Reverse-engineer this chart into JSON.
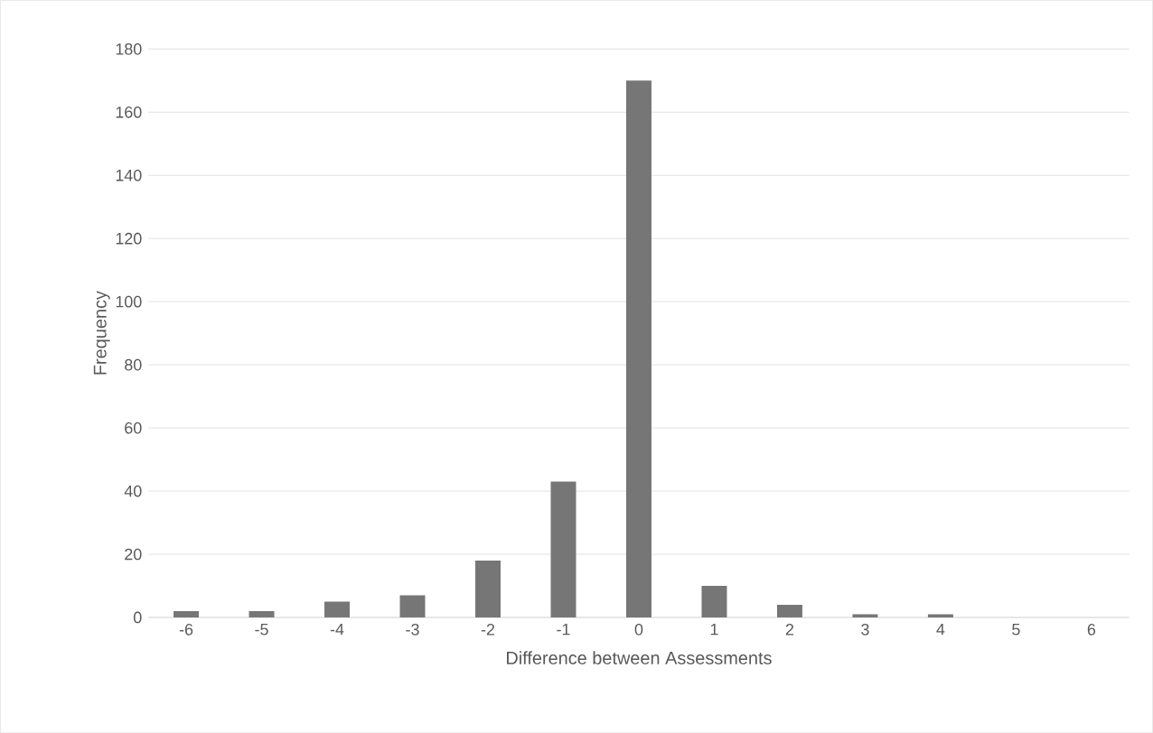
{
  "chart_data": {
    "type": "bar",
    "xlabel": "Difference between Assessments",
    "ylabel": "Frequency",
    "categories": [
      "-6",
      "-5",
      "-4",
      "-3",
      "-2",
      "-1",
      "0",
      "1",
      "2",
      "3",
      "4",
      "5",
      "6"
    ],
    "values": [
      2,
      2,
      5,
      7,
      18,
      43,
      170,
      10,
      4,
      1,
      1,
      0,
      0
    ],
    "color": "#767676",
    "ylim": [
      0,
      180
    ],
    "yticks": [
      0,
      20,
      40,
      60,
      80,
      100,
      120,
      140,
      160,
      180
    ],
    "grid": "y"
  }
}
